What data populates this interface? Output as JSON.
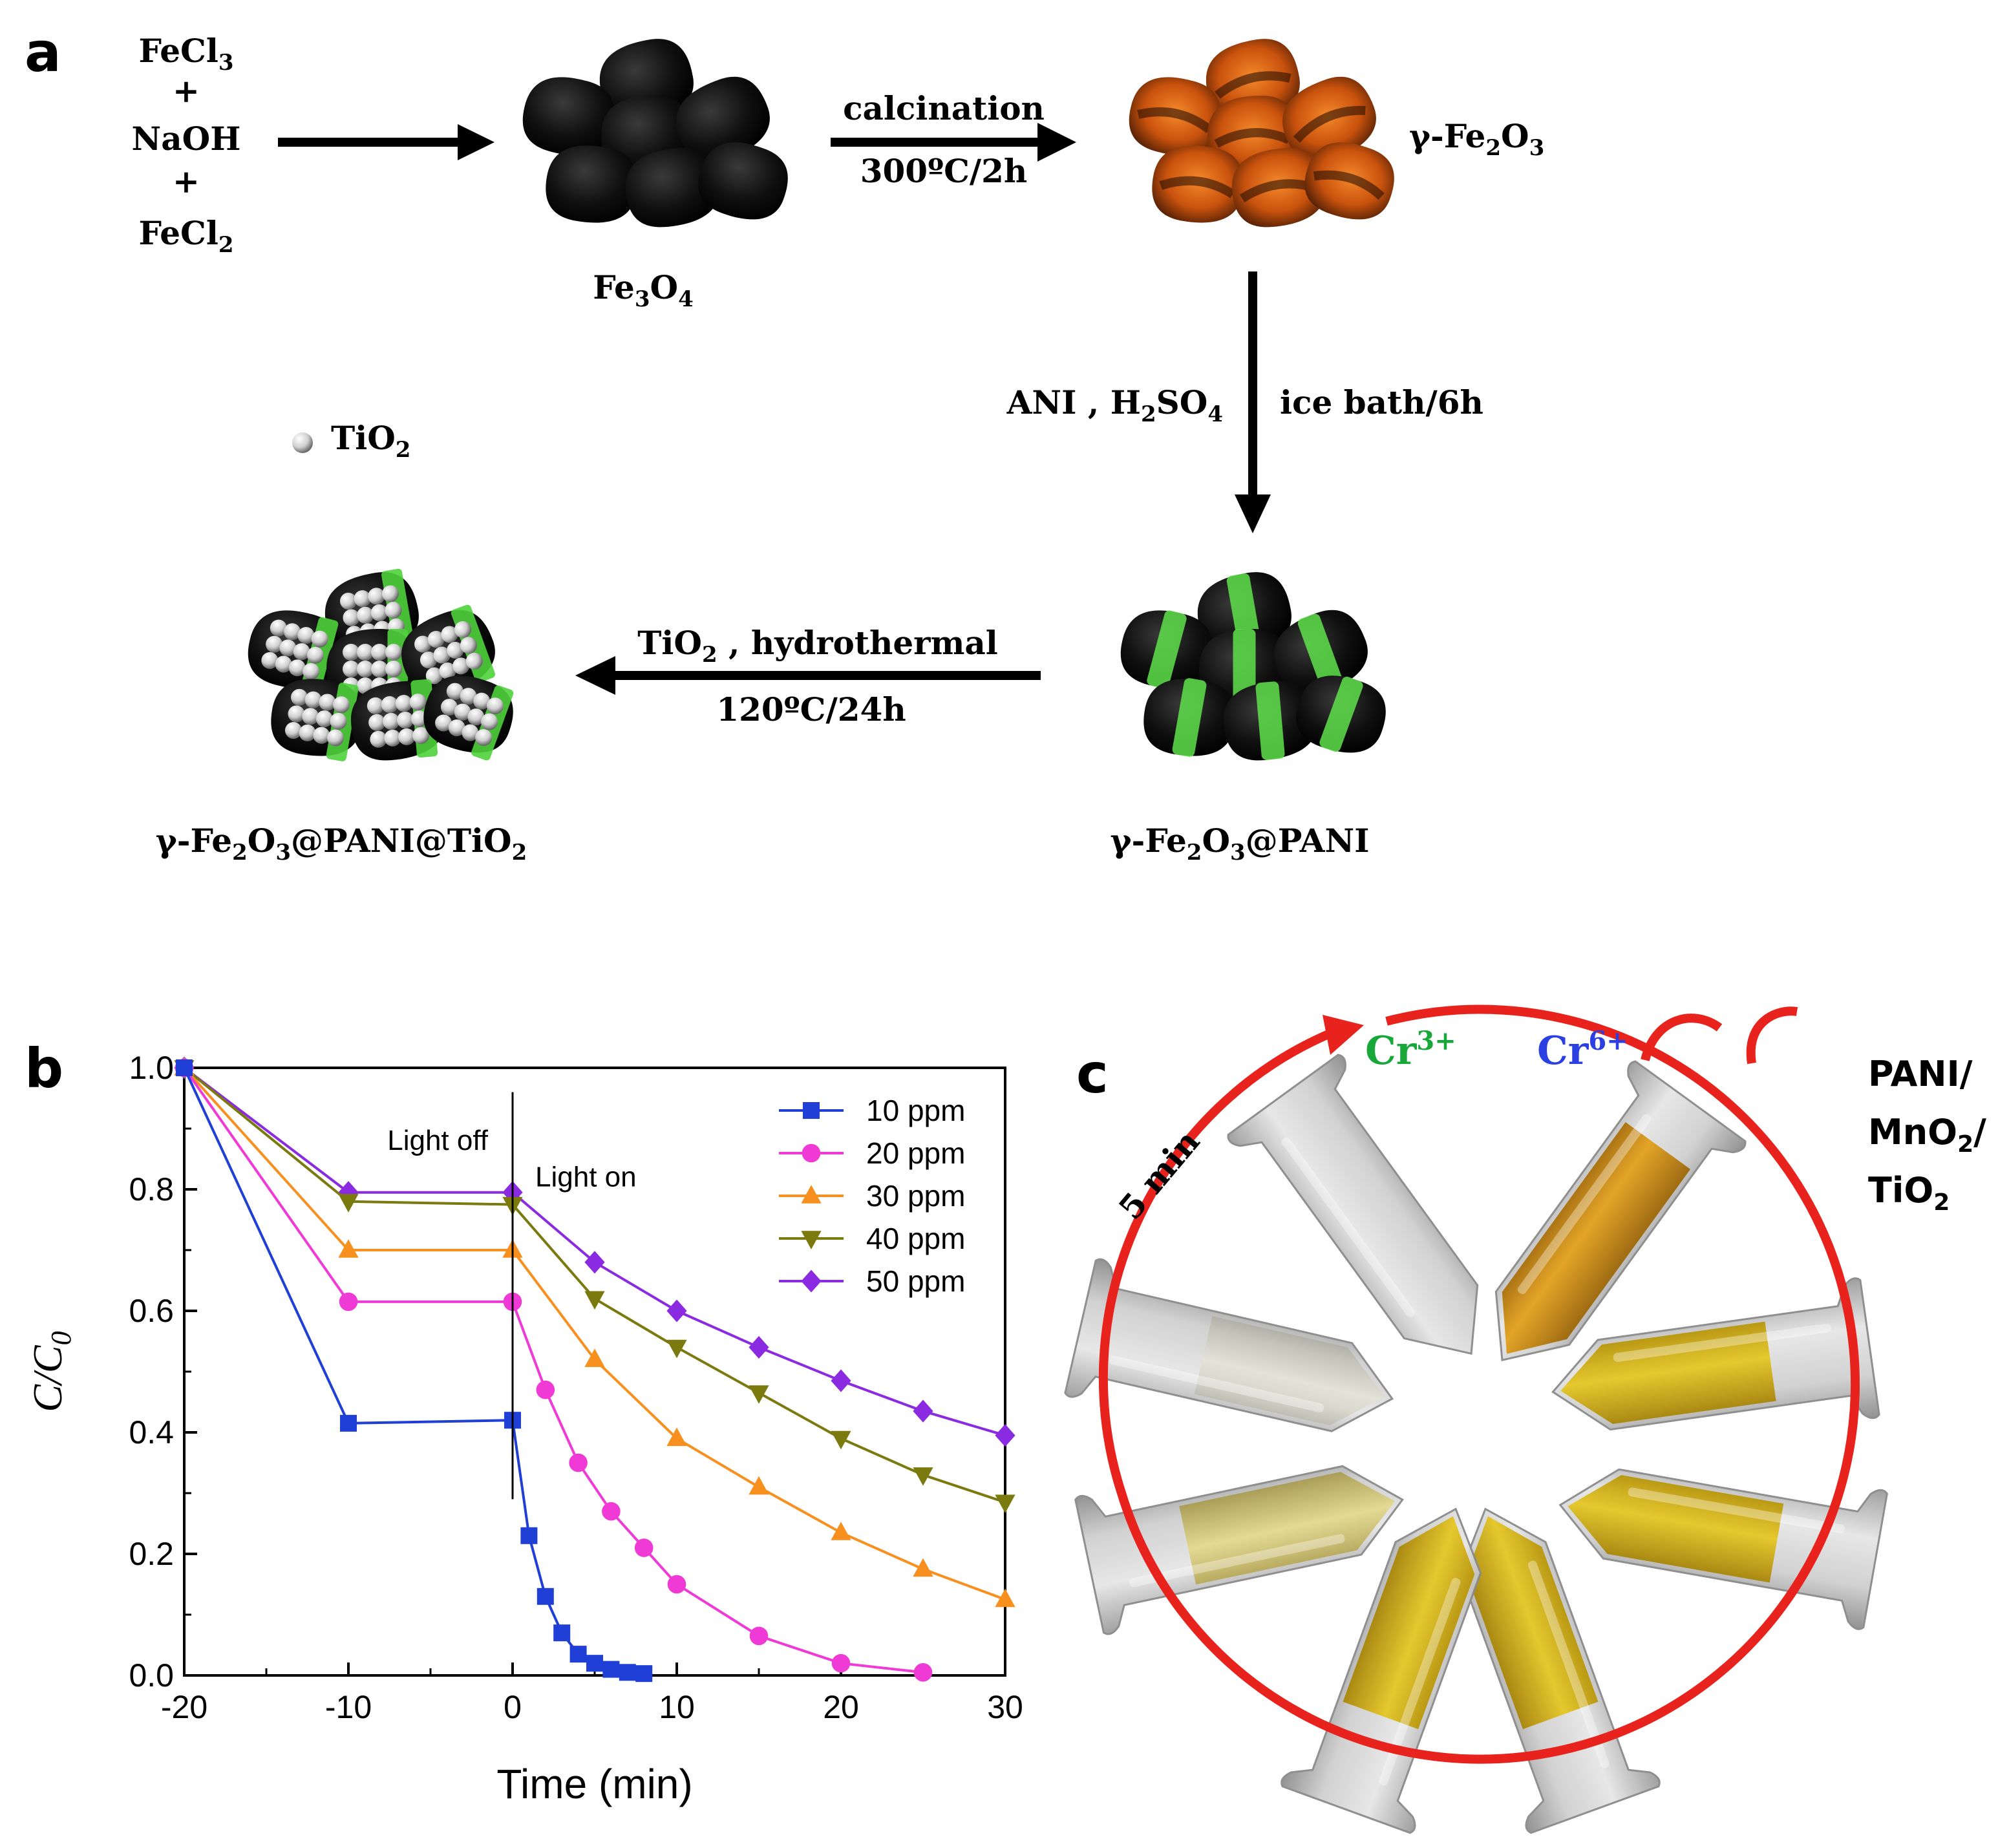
{
  "panel_a": {
    "label": "a",
    "reagents": {
      "feCl3": "FeCl",
      "feCl3_sub": "3",
      "plus": "+",
      "naoh": "NaOH",
      "feCl2": "FeCl",
      "feCl2_sub": "2"
    },
    "fe3o4": {
      "p1": "Fe",
      "s1": "3",
      "p2": "O",
      "s2": "4"
    },
    "calcination": {
      "top": "calcination",
      "bottom": "300ºC/2h"
    },
    "gamma_fe2o3": {
      "p1": "γ-Fe",
      "s1": "2",
      "p2": "O",
      "s2": "3"
    },
    "ani_step": {
      "left_p1": "ANI , H",
      "left_s1": "2",
      "left_p2": "SO",
      "left_s2": "4",
      "right": "ice bath/6h"
    },
    "tio2_legend": {
      "p1": "TiO",
      "s1": "2"
    },
    "hydro_step": {
      "top_p1": "TiO",
      "top_s1": "2",
      "top_p2": " , hydrothermal",
      "bottom": "120ºC/24h"
    },
    "pani_product": {
      "p1": "γ-Fe",
      "s1": "2",
      "p2": "O",
      "s2": "3",
      "p3": "@PANI"
    },
    "final_product": {
      "p1": "γ-Fe",
      "s1": "2",
      "p2": "O",
      "s2": "3",
      "p3": "@PANI@TiO",
      "s3": "2"
    }
  },
  "panel_b": {
    "label": "b",
    "ylabel_main": "C/C",
    "ylabel_sub": "0",
    "xlabel": "Time (min)",
    "annotation_off": "Light off",
    "annotation_on": "Light on"
  },
  "panel_c": {
    "label": "c",
    "cr3": "Cr",
    "cr3_sup": "3+",
    "cr6": "Cr",
    "cr6_sup": "6+",
    "time": "5 min",
    "catalyst_l1": "PANI/",
    "catalyst_l2_p1": "MnO",
    "catalyst_l2_s1": "2",
    "catalyst_l2_p2": "/",
    "catalyst_l3_p1": "TiO",
    "catalyst_l3_s1": "2"
  },
  "chart_data": {
    "type": "line",
    "xlim": [
      -20,
      30
    ],
    "ylim": [
      0,
      1.0
    ],
    "xticks": [
      -20,
      -10,
      0,
      10,
      20,
      30
    ],
    "yticks": [
      0.0,
      0.2,
      0.4,
      0.6,
      0.8,
      1.0
    ],
    "xtick_labels": [
      "-20",
      "-10",
      "0",
      "10",
      "20",
      "30"
    ],
    "ytick_labels": [
      "0.0",
      "0.2",
      "0.4",
      "0.6",
      "0.8",
      "1.0"
    ],
    "xlabel": "Time (min)",
    "ylabel": "C/C0",
    "legend_position": "top-right",
    "grid": false,
    "series": [
      {
        "name": "10 ppm",
        "color": "#1f3fd6",
        "marker": "square",
        "x": [
          -20,
          -10,
          0,
          1,
          2,
          3,
          4,
          5,
          6,
          7,
          8
        ],
        "y": [
          1.0,
          0.415,
          0.42,
          0.23,
          0.13,
          0.07,
          0.035,
          0.02,
          0.01,
          0.005,
          0.003
        ]
      },
      {
        "name": "20 ppm",
        "color": "#f03ad6",
        "marker": "circle",
        "x": [
          -20,
          -10,
          0,
          2,
          4,
          6,
          8,
          10,
          15,
          20,
          25
        ],
        "y": [
          1.0,
          0.615,
          0.615,
          0.47,
          0.35,
          0.27,
          0.21,
          0.15,
          0.065,
          0.02,
          0.005
        ]
      },
      {
        "name": "30 ppm",
        "color": "#f7901e",
        "marker": "triangle-up",
        "x": [
          -20,
          -10,
          0,
          5,
          10,
          15,
          20,
          25,
          30
        ],
        "y": [
          1.0,
          0.7,
          0.7,
          0.52,
          0.39,
          0.31,
          0.235,
          0.175,
          0.125
        ]
      },
      {
        "name": "40 ppm",
        "color": "#7a7a0e",
        "marker": "triangle-down",
        "x": [
          -20,
          -10,
          0,
          5,
          10,
          15,
          20,
          25,
          30
        ],
        "y": [
          1.0,
          0.78,
          0.775,
          0.62,
          0.54,
          0.465,
          0.39,
          0.33,
          0.285
        ]
      },
      {
        "name": "50 ppm",
        "color": "#8a2be2",
        "marker": "diamond",
        "x": [
          -20,
          -10,
          0,
          5,
          10,
          15,
          20,
          25,
          30
        ],
        "y": [
          1.0,
          0.795,
          0.795,
          0.68,
          0.6,
          0.54,
          0.485,
          0.435,
          0.395
        ]
      }
    ]
  }
}
